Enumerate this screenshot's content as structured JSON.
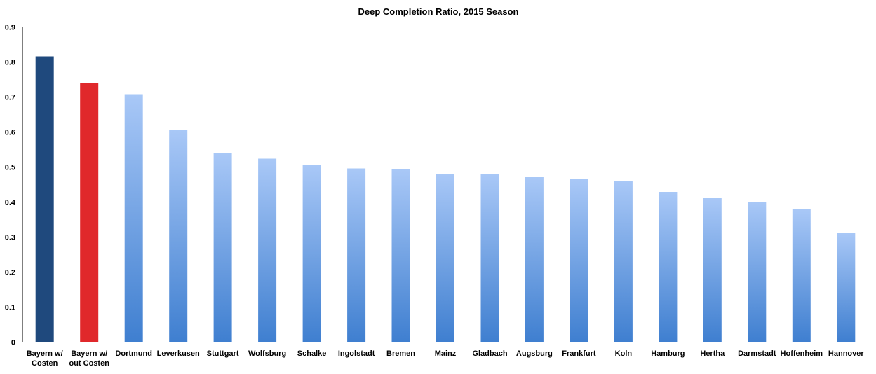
{
  "chart_data": {
    "type": "bar",
    "title": "Deep Completion Ratio, 2015 Season",
    "xlabel": "",
    "ylabel": "",
    "ylim": [
      0,
      0.9
    ],
    "yticks": [
      "0",
      "0.1",
      "0.2",
      "0.3",
      "0.4",
      "0.5",
      "0.6",
      "0.7",
      "0.8",
      "0.9"
    ],
    "grid": true,
    "legend": "none",
    "categories": [
      [
        "Bayern w/",
        "Costen"
      ],
      [
        "Bayern w/",
        "out Costen"
      ],
      [
        "Dortmund"
      ],
      [
        "Leverkusen"
      ],
      [
        "Stuttgart"
      ],
      [
        "Wolfsburg"
      ],
      [
        "Schalke"
      ],
      [
        "Ingolstadt"
      ],
      [
        "Bremen"
      ],
      [
        "Mainz"
      ],
      [
        "Gladbach"
      ],
      [
        "Augsburg"
      ],
      [
        "Frankfurt"
      ],
      [
        "Koln"
      ],
      [
        "Hamburg"
      ],
      [
        "Hertha"
      ],
      [
        "Darmstadt"
      ],
      [
        "Hoffenheim"
      ],
      [
        "Hannover"
      ]
    ],
    "values": [
      0.815,
      0.738,
      0.707,
      0.606,
      0.54,
      0.523,
      0.506,
      0.495,
      0.492,
      0.48,
      0.479,
      0.47,
      0.465,
      0.46,
      0.428,
      0.411,
      0.4,
      0.379,
      0.31
    ],
    "colors": {
      "highlight_dark": "#1f497d",
      "highlight_red": "#e0282b",
      "gradient_top": "#a9c8f7",
      "gradient_bottom": "#3f7fd0",
      "grid": "#d4d4d4",
      "axis": "#7f7f7f"
    },
    "bar_fills": [
      "highlight_dark",
      "highlight_red",
      "gradient",
      "gradient",
      "gradient",
      "gradient",
      "gradient",
      "gradient",
      "gradient",
      "gradient",
      "gradient",
      "gradient",
      "gradient",
      "gradient",
      "gradient",
      "gradient",
      "gradient",
      "gradient",
      "gradient"
    ]
  }
}
